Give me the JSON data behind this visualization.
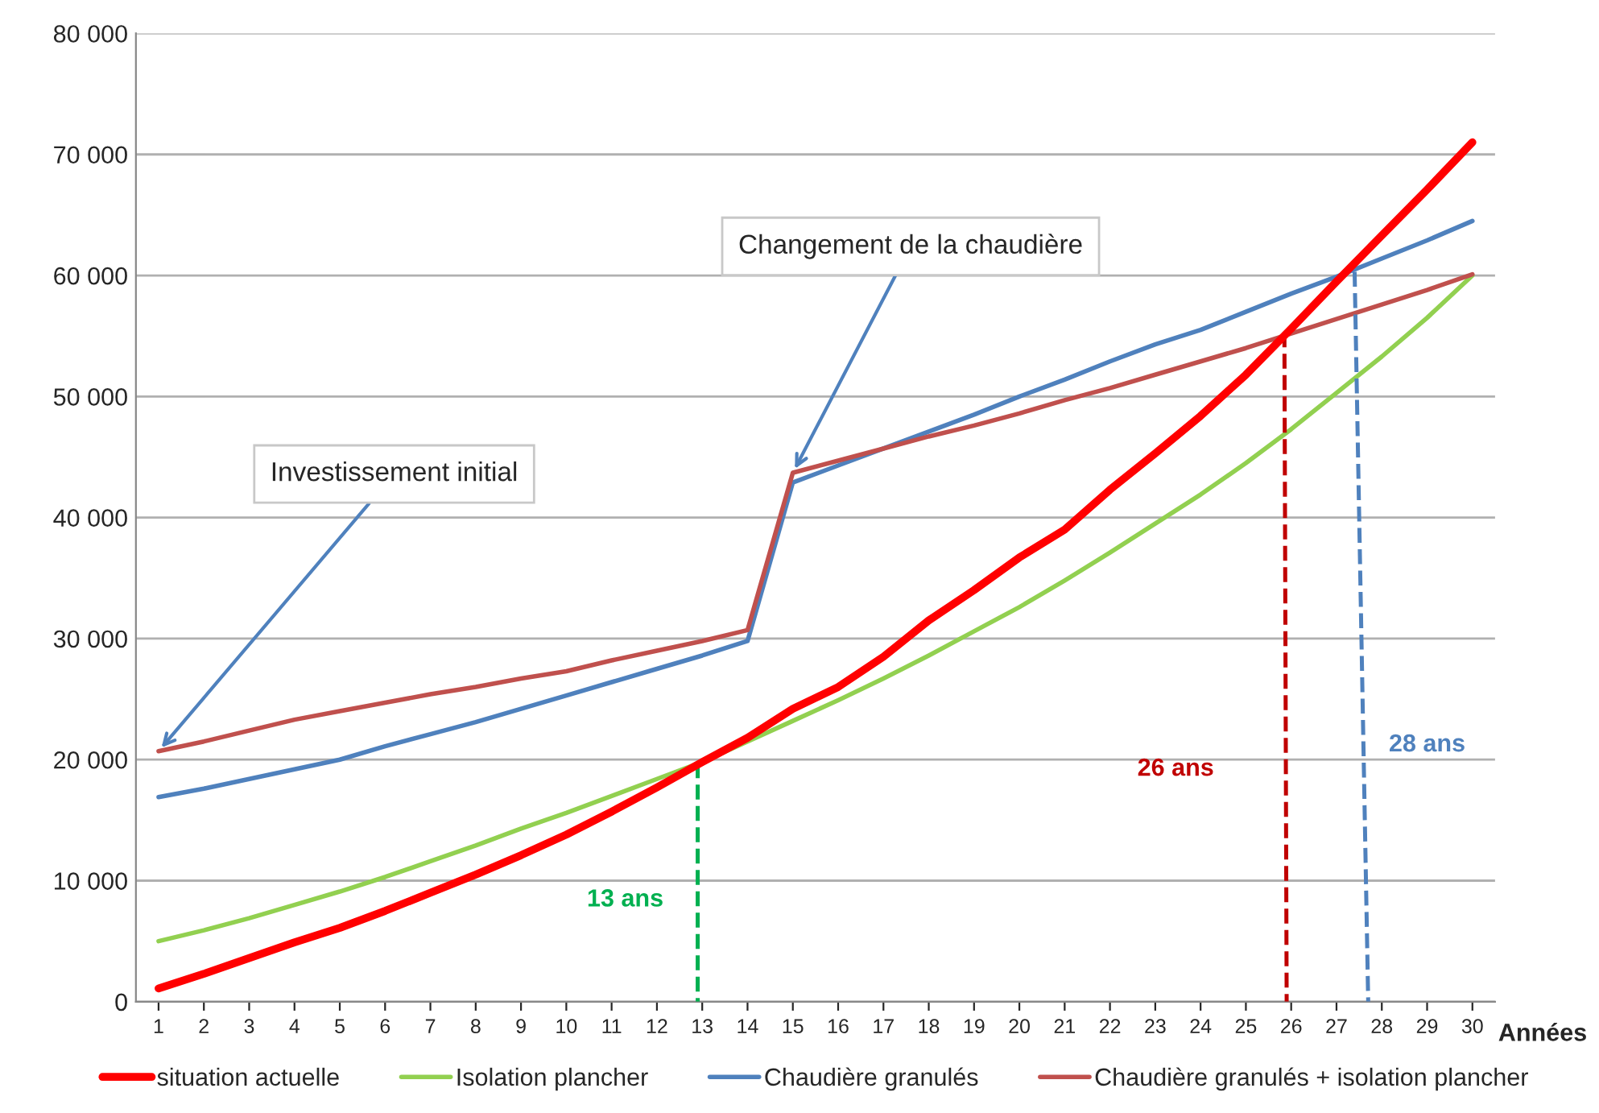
{
  "chart_data": {
    "type": "line",
    "xlabel": "Années",
    "x": [
      1,
      2,
      3,
      4,
      5,
      6,
      7,
      8,
      9,
      10,
      11,
      12,
      13,
      14,
      15,
      16,
      17,
      18,
      19,
      20,
      21,
      22,
      23,
      24,
      25,
      26,
      27,
      28,
      29,
      30
    ],
    "xlim": [
      0.5,
      30.5
    ],
    "xticks": [
      1,
      2,
      3,
      4,
      5,
      6,
      7,
      8,
      9,
      10,
      11,
      12,
      13,
      14,
      15,
      16,
      17,
      18,
      19,
      20,
      21,
      22,
      23,
      24,
      25,
      26,
      27,
      28,
      29,
      30
    ],
    "ylim": [
      0,
      80000
    ],
    "yticks": [
      {
        "value": 0,
        "label": "0"
      },
      {
        "value": 10000,
        "label": "10 000"
      },
      {
        "value": 20000,
        "label": "20 000"
      },
      {
        "value": 30000,
        "label": "30 000"
      },
      {
        "value": 40000,
        "label": "40 000"
      },
      {
        "value": 50000,
        "label": "50 000"
      },
      {
        "value": 60000,
        "label": "60 000"
      },
      {
        "value": 70000,
        "label": "70 000"
      },
      {
        "value": 80000,
        "label": "80 000"
      }
    ],
    "grid": "y",
    "legend": "bottom",
    "marker": "none",
    "series": [
      {
        "name": "situation actuelle",
        "color": "#ff0000",
        "values": [
          1100,
          2300,
          3600,
          4900,
          6100,
          7500,
          9000,
          10500,
          12100,
          13800,
          15700,
          17700,
          19800,
          21800,
          24200,
          26000,
          28500,
          31500,
          34000,
          36700,
          39000,
          42300,
          45300,
          48400,
          51800,
          55600,
          59500,
          63300,
          67100,
          71000
        ]
      },
      {
        "name": "Isolation plancher",
        "color": "#92d050",
        "values": [
          5000,
          5900,
          6900,
          8000,
          9100,
          10300,
          11600,
          12900,
          14300,
          15600,
          17000,
          18400,
          19800,
          21500,
          23200,
          24900,
          26700,
          28600,
          30600,
          32600,
          34800,
          37100,
          39500,
          41900,
          44500,
          47300,
          50300,
          53300,
          56500,
          60000
        ]
      },
      {
        "name": "Chaudière granulés",
        "color": "#4f81bd",
        "values": [
          16900,
          17600,
          18400,
          19200,
          20000,
          21100,
          22100,
          23100,
          24200,
          25300,
          26400,
          27500,
          28600,
          29800,
          42900,
          44300,
          45700,
          47100,
          48500,
          50000,
          51400,
          52900,
          54300,
          55500,
          57000,
          58500,
          59900,
          61400,
          62900,
          64500
        ]
      },
      {
        "name": "Chaudière granulés + isolation plancher",
        "color": "#c0504d",
        "values": [
          20700,
          21500,
          22400,
          23300,
          24000,
          24700,
          25400,
          26000,
          26700,
          27300,
          28200,
          29000,
          29800,
          30700,
          43700,
          44700,
          45700,
          46700,
          47600,
          48600,
          49700,
          50700,
          51800,
          52900,
          54000,
          55200,
          56400,
          57600,
          58800,
          60100
        ]
      },
      {
        "color": "#00b050",
        "line_style": "dashed",
        "x": [
          12.9,
          12.9
        ],
        "values": [
          19700,
          0
        ]
      },
      {
        "color": "#c00000",
        "line_style": "dashed",
        "x": [
          25.85,
          25.9
        ],
        "values": [
          55300,
          0
        ]
      },
      {
        "color": "#4f81bd",
        "line_style": "dashed",
        "x": [
          27.4,
          27.7
        ],
        "values": [
          60300,
          0
        ]
      }
    ],
    "annotations": [
      {
        "text": "Investissement initial",
        "x": 1,
        "y": 20700
      },
      {
        "text": "Changement de la chaudière",
        "x": 15,
        "y": 43700
      },
      "13 ans",
      "26 ans",
      "28 ans"
    ]
  }
}
